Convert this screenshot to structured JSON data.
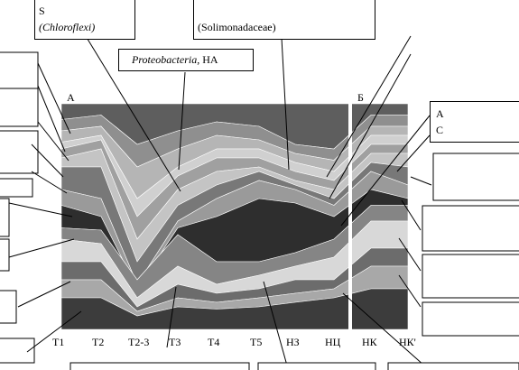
{
  "chart_data": {
    "type": "area",
    "panels": [
      "А",
      "Б"
    ],
    "categories": [
      "Т1",
      "Т2",
      "Т2-3",
      "Т3",
      "Т4",
      "Т5",
      "НЗ",
      "НЦ",
      "НК",
      "НК'"
    ],
    "stacked_bounds": [
      [
        100,
        100,
        100,
        100,
        100,
        100,
        100,
        100,
        100,
        100
      ],
      [
        93,
        95,
        82,
        88,
        92,
        90,
        82,
        80,
        95,
        95
      ],
      [
        88,
        90,
        72,
        80,
        86,
        84,
        78,
        75,
        90,
        90
      ],
      [
        83,
        86,
        58,
        72,
        80,
        80,
        74,
        70,
        86,
        86
      ],
      [
        80,
        84,
        50,
        68,
        76,
        76,
        70,
        66,
        82,
        82
      ],
      [
        76,
        80,
        40,
        62,
        70,
        72,
        66,
        62,
        78,
        78
      ],
      [
        72,
        72,
        30,
        55,
        64,
        70,
        64,
        58,
        74,
        72
      ],
      [
        62,
        58,
        20,
        48,
        58,
        66,
        62,
        55,
        70,
        64
      ],
      [
        55,
        50,
        18,
        45,
        50,
        58,
        56,
        50,
        62,
        58
      ],
      [
        45,
        44,
        22,
        42,
        30,
        30,
        34,
        40,
        55,
        55
      ],
      [
        40,
        38,
        14,
        28,
        20,
        24,
        28,
        32,
        48,
        48
      ],
      [
        30,
        30,
        10,
        20,
        16,
        18,
        22,
        22,
        36,
        36
      ],
      [
        22,
        22,
        8,
        14,
        12,
        14,
        16,
        18,
        28,
        28
      ],
      [
        14,
        14,
        6,
        10,
        9,
        10,
        12,
        14,
        18,
        18
      ],
      [
        0,
        0,
        0,
        0,
        0,
        0,
        0,
        0,
        0,
        0
      ]
    ],
    "layer_colors": [
      "#5e5e5e",
      "#8f8f8f",
      "#b5b5b5",
      "#d0d0d0",
      "#a0a0a0",
      "#c4c4c4",
      "#787878",
      "#9a9a9a",
      "#2e2e2e",
      "#858585",
      "#d8d8d8",
      "#6c6c6c",
      "#a8a8a8",
      "#3c3c3c"
    ],
    "labels": {
      "top_left": "S",
      "top_left_sub": "(Chloroflexi)",
      "top_mid_sub": "(Solimonadaceae)",
      "proteo_italic": "Proteobacteria",
      "proteo_rest": ", НА",
      "right_letter": "A",
      "right_letter2": "C"
    },
    "grid": false
  }
}
